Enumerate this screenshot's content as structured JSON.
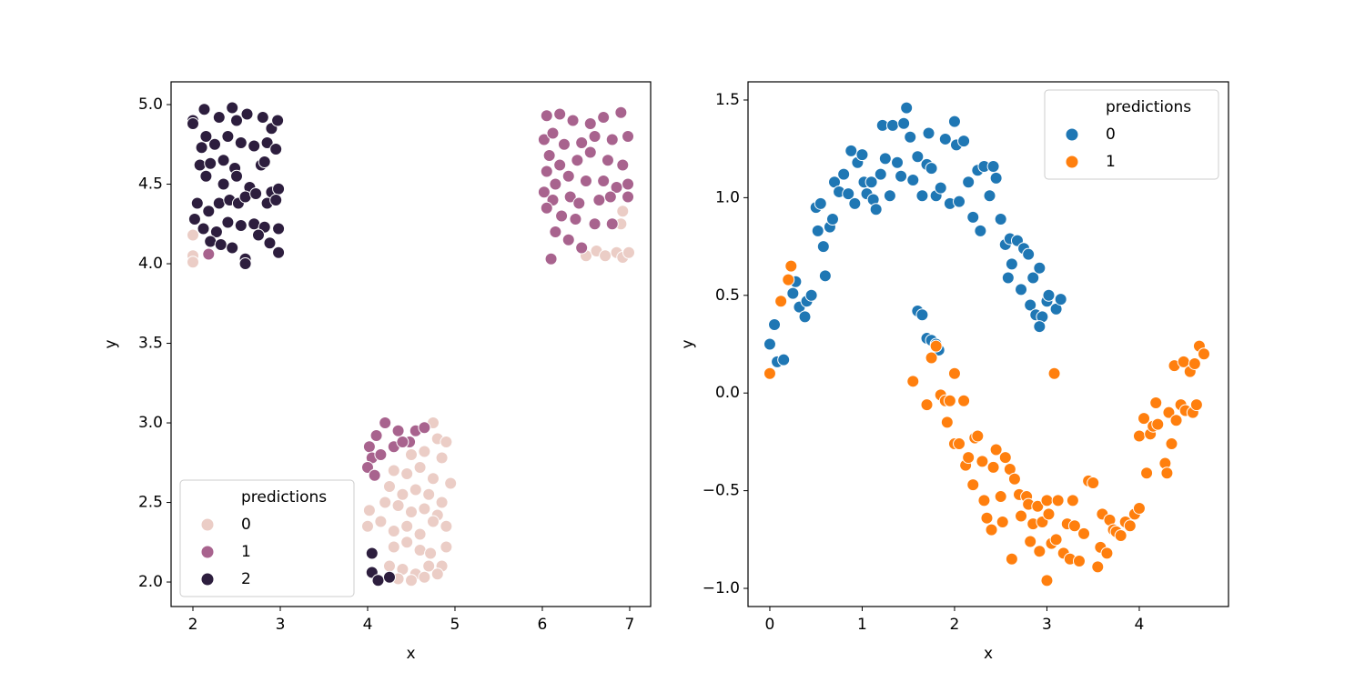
{
  "chart_data": [
    {
      "type": "scatter",
      "xlabel": "x",
      "ylabel": "y",
      "legend_title": "predictions",
      "legend_loc": "lower left",
      "xlim": [
        1.75,
        7.24
      ],
      "ylim": [
        1.846,
        5.143
      ],
      "xticks": [
        2,
        3,
        4,
        5,
        6,
        7
      ],
      "yticks": [
        {
          "value": 2,
          "label": "2.0"
        },
        2.5,
        {
          "value": 3,
          "label": "3.0"
        },
        3.5,
        {
          "value": 4,
          "label": "4.0"
        },
        4.5,
        {
          "value": 5,
          "label": "5.0"
        }
      ],
      "series": [
        {
          "name": "0",
          "color": "#ebcdc6",
          "x": [
            2.0,
            2.0,
            2.0,
            6.5,
            6.62,
            6.72,
            6.85,
            6.92,
            6.99,
            6.9,
            6.92,
            4.75,
            4.8,
            4.9,
            4.5,
            4.65,
            4.85,
            4.3,
            4.45,
            4.6,
            4.75,
            4.95,
            4.25,
            4.4,
            4.55,
            4.7,
            4.85,
            4.02,
            4.2,
            4.35,
            4.5,
            4.65,
            4.8,
            4.0,
            4.15,
            4.3,
            4.45,
            4.6,
            4.75,
            4.9,
            4.3,
            4.45,
            4.6,
            4.72,
            4.9,
            4.25,
            4.4,
            4.55,
            4.7,
            4.85,
            4.35,
            4.5,
            4.65,
            4.8
          ],
          "y": [
            4.18,
            4.05,
            4.01,
            4.05,
            4.08,
            4.05,
            4.07,
            4.04,
            4.07,
            4.25,
            4.33,
            3.0,
            2.9,
            2.88,
            2.8,
            2.82,
            2.78,
            2.7,
            2.68,
            2.72,
            2.65,
            2.62,
            2.6,
            2.55,
            2.58,
            2.55,
            2.5,
            2.45,
            2.5,
            2.48,
            2.44,
            2.46,
            2.42,
            2.35,
            2.38,
            2.32,
            2.35,
            2.3,
            2.38,
            2.35,
            2.22,
            2.25,
            2.2,
            2.18,
            2.22,
            2.1,
            2.08,
            2.05,
            2.1,
            2.1,
            2.02,
            2.01,
            2.03,
            2.05
          ]
        },
        {
          "name": "1",
          "color": "#a8638e",
          "x": [
            6.05,
            6.2,
            6.35,
            6.55,
            6.7,
            6.9,
            6.98,
            6.02,
            6.12,
            6.25,
            6.45,
            6.6,
            6.8,
            6.08,
            6.2,
            6.4,
            6.55,
            6.75,
            6.92,
            6.05,
            6.15,
            6.3,
            6.5,
            6.7,
            6.85,
            6.98,
            6.02,
            6.12,
            6.32,
            6.42,
            6.65,
            6.78,
            6.98,
            6.05,
            6.22,
            6.38,
            6.6,
            6.8,
            6.15,
            6.3,
            6.45,
            6.1,
            4.02,
            4.1,
            4.2,
            4.35,
            4.48,
            4.55,
            4.65,
            4.05,
            4.15,
            4.3,
            4.4,
            4.0,
            4.08,
            2.18
          ],
          "y": [
            4.93,
            4.94,
            4.9,
            4.88,
            4.92,
            4.95,
            4.8,
            4.78,
            4.82,
            4.75,
            4.76,
            4.8,
            4.78,
            4.68,
            4.62,
            4.65,
            4.7,
            4.65,
            4.62,
            4.58,
            4.5,
            4.55,
            4.52,
            4.52,
            4.48,
            4.5,
            4.45,
            4.4,
            4.42,
            4.38,
            4.4,
            4.42,
            4.42,
            4.35,
            4.3,
            4.28,
            4.25,
            4.25,
            4.2,
            4.15,
            4.1,
            4.03,
            2.85,
            2.92,
            3.0,
            2.95,
            2.88,
            2.95,
            2.97,
            2.78,
            2.8,
            2.85,
            2.88,
            2.72,
            2.67,
            4.06
          ]
        },
        {
          "name": "2",
          "color": "#2d1e3e",
          "x": [
            2.0,
            2.0,
            2.13,
            2.15,
            2.3,
            2.45,
            2.5,
            2.62,
            2.8,
            2.9,
            2.97,
            2.1,
            2.25,
            2.4,
            2.55,
            2.7,
            2.85,
            2.95,
            2.08,
            2.2,
            2.35,
            2.48,
            2.78,
            2.82,
            2.15,
            2.35,
            2.5,
            2.65,
            2.9,
            2.98,
            2.05,
            2.18,
            2.3,
            2.42,
            2.52,
            2.6,
            2.72,
            2.85,
            2.95,
            2.02,
            2.12,
            2.27,
            2.4,
            2.55,
            2.7,
            2.82,
            2.98,
            2.2,
            2.32,
            2.45,
            2.6,
            2.75,
            2.88,
            2.98,
            2.6,
            4.05,
            4.05,
            4.12,
            4.25
          ],
          "y": [
            4.9,
            4.88,
            4.97,
            4.8,
            4.92,
            4.98,
            4.9,
            4.94,
            4.92,
            4.85,
            4.9,
            4.73,
            4.75,
            4.8,
            4.76,
            4.74,
            4.76,
            4.72,
            4.62,
            4.63,
            4.65,
            4.6,
            4.62,
            4.64,
            4.55,
            4.5,
            4.55,
            4.48,
            4.45,
            4.47,
            4.38,
            4.33,
            4.38,
            4.4,
            4.38,
            4.42,
            4.44,
            4.38,
            4.4,
            4.28,
            4.22,
            4.2,
            4.26,
            4.24,
            4.25,
            4.23,
            4.22,
            4.14,
            4.12,
            4.1,
            4.03,
            4.18,
            4.13,
            4.07,
            4.0,
            2.18,
            2.06,
            2.01,
            2.03
          ]
        }
      ]
    },
    {
      "type": "scatter",
      "xlabel": "x",
      "ylabel": "y",
      "legend_title": "predictions",
      "legend_loc": "upper right",
      "xlim": [
        -0.236,
        4.966
      ],
      "ylim": [
        -1.093,
        1.593
      ],
      "xticks": [
        0,
        1,
        2,
        3,
        4
      ],
      "yticks": [
        {
          "value": -1,
          "label": "−1.0"
        },
        {
          "value": -0.5,
          "label": "−0.5"
        },
        {
          "value": 0,
          "label": "0.0"
        },
        0.5,
        {
          "value": 1,
          "label": "1.0"
        },
        1.5
      ],
      "series": [
        {
          "name": "0",
          "color": "#1f77b4",
          "x": [
            0.0,
            0.05,
            0.08,
            0.15,
            0.25,
            0.28,
            0.32,
            0.38,
            0.4,
            0.45,
            0.5,
            0.52,
            0.55,
            0.58,
            0.6,
            0.65,
            0.68,
            0.7,
            0.75,
            0.8,
            0.85,
            0.88,
            0.92,
            0.95,
            1.0,
            1.02,
            1.05,
            1.1,
            1.12,
            1.15,
            1.2,
            1.22,
            1.25,
            1.3,
            1.33,
            1.38,
            1.42,
            1.45,
            1.48,
            1.52,
            1.55,
            1.6,
            1.65,
            1.7,
            1.72,
            1.75,
            1.8,
            1.85,
            1.9,
            1.95,
            2.0,
            2.02,
            2.05,
            2.1,
            2.15,
            2.2,
            2.25,
            2.28,
            2.32,
            2.38,
            2.42,
            2.45,
            2.5,
            2.55,
            2.58,
            2.6,
            2.62,
            2.68,
            2.72,
            2.75,
            2.8,
            2.82,
            2.85,
            2.88,
            2.92,
            2.95,
            3.0,
            3.02,
            3.1,
            3.15,
            1.6,
            1.65,
            1.7,
            1.75,
            1.8,
            1.83,
            2.92
          ],
          "y": [
            0.25,
            0.35,
            0.16,
            0.17,
            0.51,
            0.57,
            0.44,
            0.39,
            0.47,
            0.5,
            0.95,
            0.83,
            0.97,
            0.75,
            0.6,
            0.85,
            0.89,
            1.08,
            1.03,
            1.12,
            1.02,
            1.24,
            0.97,
            1.18,
            1.22,
            1.08,
            1.02,
            1.08,
            0.99,
            0.94,
            1.12,
            1.37,
            1.2,
            1.01,
            1.37,
            1.18,
            1.11,
            1.38,
            1.46,
            1.31,
            1.09,
            1.21,
            1.01,
            1.17,
            1.33,
            1.15,
            1.01,
            1.05,
            1.3,
            0.97,
            1.39,
            1.27,
            0.98,
            1.29,
            1.08,
            0.9,
            1.14,
            0.83,
            1.16,
            1.01,
            1.16,
            1.1,
            0.89,
            0.76,
            0.59,
            0.79,
            0.66,
            0.78,
            0.53,
            0.74,
            0.71,
            0.45,
            0.59,
            0.4,
            0.64,
            0.39,
            0.47,
            0.5,
            0.43,
            0.48,
            0.42,
            0.4,
            0.28,
            0.27,
            0.25,
            0.22,
            0.34
          ]
        },
        {
          "name": "1",
          "color": "#ff7f0e",
          "x": [
            0.0,
            0.12,
            0.2,
            0.23,
            1.55,
            1.7,
            1.75,
            1.8,
            1.85,
            1.9,
            1.92,
            1.95,
            2.0,
            2.0,
            2.05,
            2.1,
            2.12,
            2.15,
            2.2,
            2.22,
            2.25,
            2.3,
            2.32,
            2.35,
            2.4,
            2.42,
            2.45,
            2.5,
            2.52,
            2.55,
            2.6,
            2.62,
            2.65,
            2.7,
            2.72,
            2.78,
            2.8,
            2.82,
            2.85,
            2.9,
            2.92,
            2.95,
            3.0,
            3.0,
            3.02,
            3.05,
            3.08,
            3.1,
            3.12,
            3.18,
            3.22,
            3.25,
            3.28,
            3.3,
            3.35,
            3.4,
            3.45,
            3.5,
            3.55,
            3.58,
            3.6,
            3.65,
            3.68,
            3.72,
            3.75,
            3.8,
            3.85,
            3.9,
            3.95,
            4.0,
            4.0,
            4.05,
            4.08,
            4.12,
            4.15,
            4.18,
            4.2,
            4.28,
            4.3,
            4.32,
            4.35,
            4.38,
            4.4,
            4.45,
            4.48,
            4.5,
            4.55,
            4.58,
            4.6,
            4.62,
            4.65,
            4.7
          ],
          "y": [
            0.1,
            0.47,
            0.58,
            0.65,
            0.06,
            -0.06,
            0.18,
            0.24,
            -0.01,
            -0.04,
            -0.15,
            -0.04,
            0.1,
            -0.26,
            -0.26,
            -0.04,
            -0.37,
            -0.33,
            -0.47,
            -0.23,
            -0.22,
            -0.35,
            -0.55,
            -0.64,
            -0.7,
            -0.38,
            -0.29,
            -0.53,
            -0.66,
            -0.33,
            -0.39,
            -0.85,
            -0.44,
            -0.52,
            -0.63,
            -0.53,
            -0.57,
            -0.76,
            -0.67,
            -0.58,
            -0.81,
            -0.66,
            -0.55,
            -0.96,
            -0.62,
            -0.77,
            0.1,
            -0.75,
            -0.55,
            -0.82,
            -0.67,
            -0.85,
            -0.55,
            -0.68,
            -0.86,
            -0.72,
            -0.45,
            -0.46,
            -0.89,
            -0.79,
            -0.62,
            -0.82,
            -0.65,
            -0.7,
            -0.71,
            -0.73,
            -0.66,
            -0.68,
            -0.62,
            -0.59,
            -0.22,
            -0.13,
            -0.41,
            -0.21,
            -0.17,
            -0.05,
            -0.16,
            -0.36,
            -0.41,
            -0.1,
            -0.26,
            0.14,
            -0.14,
            -0.06,
            0.16,
            -0.09,
            0.11,
            -0.1,
            0.15,
            -0.06,
            0.24,
            0.2
          ]
        }
      ]
    }
  ]
}
